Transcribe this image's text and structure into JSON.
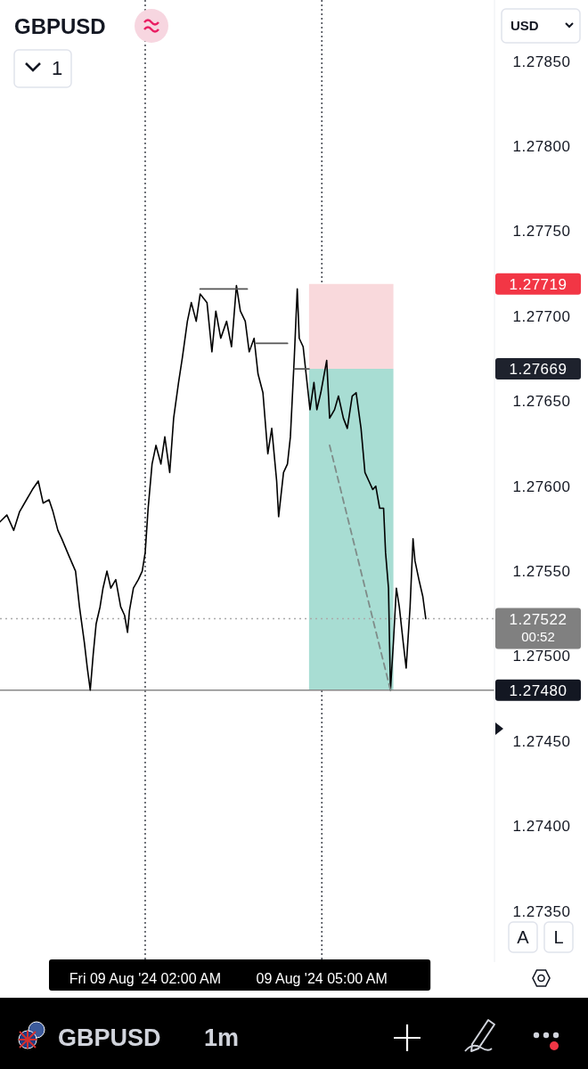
{
  "chart_data": {
    "type": "line",
    "title": "GBPUSD",
    "xlim": [
      "2024-08-08T23:32",
      "2024-08-09T07:56"
    ],
    "xticks": [
      {
        "value": "2024-08-09T02:00",
        "label": "Fri 09 Aug '24 02:00 AM"
      },
      {
        "value": "2024-08-09T05:00",
        "label": "09 Aug '24 05:00 AM"
      }
    ],
    "ylim": [
      1.2732,
      1.27886
    ],
    "yticks": [
      {
        "value": 1.2735,
        "label": "1.27350"
      },
      {
        "value": 1.274,
        "label": "1.27400"
      },
      {
        "value": 1.2745,
        "label": "1.27450"
      },
      {
        "value": 1.275,
        "label": "1.27500"
      },
      {
        "value": 1.2755,
        "label": "1.27550"
      },
      {
        "value": 1.276,
        "label": "1.27600"
      },
      {
        "value": 1.2765,
        "label": "1.27650"
      },
      {
        "value": 1.277,
        "label": "1.27700"
      },
      {
        "value": 1.2775,
        "label": "1.27750"
      },
      {
        "value": 1.278,
        "label": "1.27800"
      },
      {
        "value": 1.2785,
        "label": "1.27850"
      }
    ],
    "grid": "x",
    "series": [
      {
        "color": "#f9d9dc",
        "x": [
          "2024-08-09T04:47",
          "2024-08-09T06:13"
        ],
        "values": [
          null,
          null
        ],
        "lower": [
          1.27669,
          1.27669
        ],
        "upper": [
          1.27719,
          1.27719
        ]
      },
      {
        "color": "#a8ddd3",
        "x": [
          "2024-08-09T04:47",
          "2024-08-09T06:13"
        ],
        "values": [
          null,
          null
        ],
        "lower": [
          1.2748,
          1.2748
        ],
        "upper": [
          1.27669,
          1.27669
        ]
      },
      {
        "color": "#000000",
        "x": [
          "2024-08-08T23:32",
          "2024-08-08T23:39",
          "2024-08-08T23:46",
          "2024-08-08T23:52",
          "2024-08-08T23:59",
          "2024-08-09T00:05",
          "2024-08-09T00:11",
          "2024-08-09T00:16",
          "2024-08-09T00:22",
          "2024-08-09T00:26",
          "2024-08-09T00:31",
          "2024-08-09T00:35",
          "2024-08-09T00:43",
          "2024-08-09T00:49",
          "2024-08-09T00:53",
          "2024-08-09T00:58",
          "2024-08-09T01:01",
          "2024-08-09T01:04",
          "2024-08-09T01:07",
          "2024-08-09T01:10",
          "2024-08-09T01:14",
          "2024-08-09T01:17",
          "2024-08-09T01:21",
          "2024-08-09T01:25",
          "2024-08-09T01:30",
          "2024-08-09T01:35",
          "2024-08-09T01:39",
          "2024-08-09T01:42",
          "2024-08-09T01:44",
          "2024-08-09T01:48",
          "2024-08-09T01:53",
          "2024-08-09T01:57",
          "2024-08-09T02:00",
          "2024-08-09T02:03",
          "2024-08-09T02:07",
          "2024-08-09T02:11",
          "2024-08-09T02:16",
          "2024-08-09T02:20",
          "2024-08-09T02:25",
          "2024-08-09T02:29",
          "2024-08-09T02:34",
          "2024-08-09T02:38",
          "2024-08-09T02:43",
          "2024-08-09T02:47",
          "2024-08-09T02:52",
          "2024-08-09T02:56",
          "2024-08-09T03:03",
          "2024-08-09T03:08",
          "2024-08-09T03:12",
          "2024-08-09T03:17",
          "2024-08-09T03:23",
          "2024-08-09T03:28",
          "2024-08-09T03:33",
          "2024-08-09T03:37",
          "2024-08-09T03:42",
          "2024-08-09T03:46",
          "2024-08-09T03:51",
          "2024-08-09T03:55",
          "2024-08-09T04:00",
          "2024-08-09T04:05",
          "2024-08-09T04:09",
          "2024-08-09T04:14",
          "2024-08-09T04:16",
          "2024-08-09T04:21",
          "2024-08-09T04:25",
          "2024-08-09T04:28",
          "2024-08-09T04:32",
          "2024-08-09T04:35",
          "2024-08-09T04:37",
          "2024-08-09T04:41",
          "2024-08-09T04:44",
          "2024-08-09T04:48",
          "2024-08-09T04:52",
          "2024-08-09T04:55",
          "2024-08-09T04:59",
          "2024-08-09T05:05",
          "2024-08-09T05:08",
          "2024-08-09T05:13",
          "2024-08-09T05:17",
          "2024-08-09T05:22",
          "2024-08-09T05:26",
          "2024-08-09T05:31",
          "2024-08-09T05:35",
          "2024-08-09T05:40",
          "2024-08-09T05:44",
          "2024-08-09T05:48",
          "2024-08-09T05:52",
          "2024-08-09T05:55",
          "2024-08-09T05:59",
          "2024-08-09T06:03",
          "2024-08-09T06:05",
          "2024-08-09T06:08",
          "2024-08-09T06:10",
          "2024-08-09T06:13",
          "2024-08-09T06:16",
          "2024-08-09T06:19",
          "2024-08-09T06:23",
          "2024-08-09T06:26",
          "2024-08-09T06:30",
          "2024-08-09T06:33",
          "2024-08-09T06:35",
          "2024-08-09T06:39",
          "2024-08-09T06:43",
          "2024-08-09T06:46"
        ],
        "values": [
          1.27579,
          1.27583,
          1.27574,
          1.27585,
          1.27592,
          1.27598,
          1.27603,
          1.2759,
          1.27592,
          1.27585,
          1.27574,
          1.27569,
          1.27558,
          1.2755,
          1.27529,
          1.27508,
          1.27493,
          1.2748,
          1.27501,
          1.27519,
          1.27529,
          1.2754,
          1.2755,
          1.2754,
          1.27545,
          1.27529,
          1.27524,
          1.27514,
          1.27527,
          1.2754,
          1.27545,
          1.2755,
          1.27561,
          1.27587,
          1.27613,
          1.27624,
          1.27613,
          1.27629,
          1.27608,
          1.2764,
          1.27661,
          1.27676,
          1.27697,
          1.27708,
          1.27697,
          1.27713,
          1.27708,
          1.27679,
          1.27703,
          1.27687,
          1.27697,
          1.27682,
          1.27718,
          1.27703,
          1.27697,
          1.27679,
          1.27687,
          1.27666,
          1.27655,
          1.27619,
          1.27634,
          1.27603,
          1.27582,
          1.27608,
          1.27613,
          1.27629,
          1.27676,
          1.27716,
          1.27687,
          1.27682,
          1.27666,
          1.27645,
          1.27661,
          1.27645,
          1.27655,
          1.27674,
          1.2764,
          1.27645,
          1.27653,
          1.2764,
          1.27634,
          1.27653,
          1.27655,
          1.27634,
          1.27608,
          1.27603,
          1.27598,
          1.276,
          1.27587,
          1.27587,
          1.27561,
          1.2754,
          1.2748,
          1.27508,
          1.2754,
          1.27529,
          1.27508,
          1.27493,
          1.27529,
          1.27569,
          1.27556,
          1.27545,
          1.27535,
          1.27522
        ]
      },
      {
        "color": "#555555",
        "x": [
          "2024-08-09T02:56",
          "2024-08-09T03:44"
        ],
        "values": [
          1.27716,
          1.27716
        ]
      },
      {
        "color": "#555555",
        "x": [
          "2024-08-09T03:53",
          "2024-08-09T04:25"
        ],
        "values": [
          1.27684,
          1.27684
        ]
      },
      {
        "color": "#555555",
        "x": [
          "2024-08-09T04:32",
          "2024-08-09T04:47"
        ],
        "values": [
          1.27669,
          1.27669
        ]
      },
      {
        "color": "#7f8c89",
        "line_style": "dashed",
        "x": [
          "2024-08-09T05:08",
          "2024-08-09T06:10"
        ],
        "values": [
          1.27624,
          1.2748
        ]
      }
    ],
    "ref_lines": [
      {
        "axis": "y",
        "value": 1.2748,
        "label": "1.27480",
        "color": "#888888",
        "line_style": "solid"
      },
      {
        "axis": "y",
        "value": 1.27522,
        "label": "1.27522",
        "color": "#aaaaaa",
        "line_style": "dotted"
      }
    ],
    "annotations": [
      "1.27719",
      "1.27669",
      "00:52",
      "USD",
      "1",
      "A",
      "L",
      "GBPUSD",
      "1m"
    ]
  }
}
